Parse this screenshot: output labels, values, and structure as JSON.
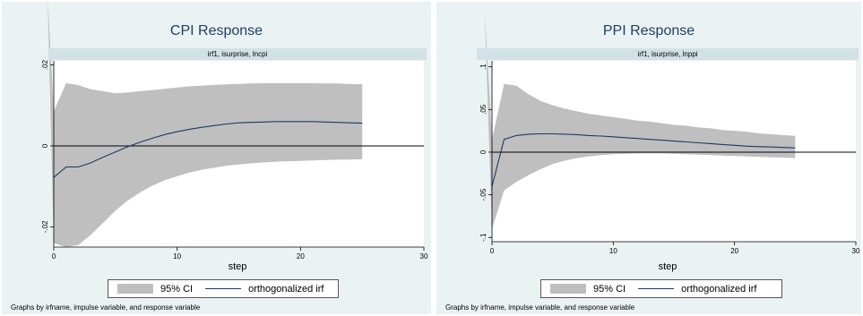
{
  "chart_data": [
    {
      "type": "line",
      "title": "CPI Response",
      "subtitle": "irf1, isurprise, lncpi",
      "xlabel": "step",
      "ylabel": "",
      "xlim": [
        0,
        30
      ],
      "ylim": [
        -0.025,
        0.021
      ],
      "xticks": [
        0,
        10,
        20,
        30
      ],
      "yticks": [
        -0.02,
        0,
        0.02
      ],
      "ytick_labels": [
        "-.02",
        "0",
        ".02"
      ],
      "x": [
        0,
        1,
        2,
        3,
        4,
        5,
        6,
        7,
        8,
        9,
        10,
        11,
        12,
        13,
        14,
        15,
        16,
        17,
        18,
        19,
        20,
        21,
        22,
        23,
        24,
        25
      ],
      "series": [
        {
          "name": "orthogonalized irf",
          "values": [
            -0.0078,
            -0.0052,
            -0.0052,
            -0.0042,
            -0.0028,
            -0.0015,
            -0.0002,
            0.0009,
            0.0019,
            0.0028,
            0.0035,
            0.0041,
            0.0046,
            0.005,
            0.0054,
            0.0057,
            0.0058,
            0.0059,
            0.006,
            0.006,
            0.006,
            0.006,
            0.0059,
            0.0058,
            0.0057,
            0.0056
          ]
        },
        {
          "name": "95% CI",
          "lower": [
            -0.024,
            -0.025,
            -0.0245,
            -0.022,
            -0.019,
            -0.016,
            -0.0135,
            -0.0115,
            -0.0098,
            -0.0085,
            -0.0075,
            -0.0066,
            -0.0059,
            -0.0054,
            -0.0049,
            -0.0046,
            -0.0043,
            -0.0041,
            -0.0039,
            -0.0038,
            -0.0037,
            -0.0036,
            -0.0035,
            -0.0034,
            -0.0034,
            -0.0033
          ],
          "upper": [
            0.0085,
            0.0155,
            0.015,
            0.014,
            0.0135,
            0.013,
            0.0132,
            0.0135,
            0.0138,
            0.0141,
            0.0144,
            0.0147,
            0.0149,
            0.0151,
            0.0152,
            0.0153,
            0.0154,
            0.0155,
            0.0155,
            0.0155,
            0.0155,
            0.0155,
            0.0154,
            0.0154,
            0.0153,
            0.0152
          ]
        }
      ],
      "band_start": {
        "x": -0.5,
        "y": 0.037
      },
      "legend": [
        "95% CI",
        "orthogonalized irf"
      ],
      "legend_position": "bottom",
      "note": "Graphs by irfname, impulse variable, and response variable",
      "grid": false
    },
    {
      "type": "line",
      "title": "PPI Response",
      "subtitle": "irf1, isurprise, lnppi",
      "xlabel": "step",
      "ylabel": "",
      "xlim": [
        0,
        30
      ],
      "ylim": [
        -0.105,
        0.107
      ],
      "xticks": [
        0,
        10,
        20,
        30
      ],
      "yticks": [
        -0.1,
        -0.05,
        0,
        0.05,
        0.1
      ],
      "ytick_labels": [
        "-.1",
        "-.05",
        "0",
        ".05",
        ".1"
      ],
      "x": [
        0,
        1,
        2,
        3,
        4,
        5,
        6,
        7,
        8,
        9,
        10,
        11,
        12,
        13,
        14,
        15,
        16,
        17,
        18,
        19,
        20,
        21,
        22,
        23,
        24,
        25
      ],
      "series": [
        {
          "name": "orthogonalized irf",
          "values": [
            -0.04,
            0.015,
            0.0195,
            0.021,
            0.0215,
            0.0215,
            0.021,
            0.0205,
            0.0195,
            0.0188,
            0.018,
            0.017,
            0.016,
            0.015,
            0.014,
            0.013,
            0.012,
            0.011,
            0.01,
            0.009,
            0.008,
            0.007,
            0.0065,
            0.006,
            0.0055,
            0.005
          ]
        },
        {
          "name": "95% CI",
          "lower": [
            -0.09,
            -0.045,
            -0.035,
            -0.027,
            -0.02,
            -0.014,
            -0.01,
            -0.007,
            -0.005,
            -0.0035,
            -0.0025,
            -0.002,
            -0.0015,
            -0.0015,
            -0.0015,
            -0.002,
            -0.0025,
            -0.003,
            -0.0035,
            -0.004,
            -0.0045,
            -0.005,
            -0.0055,
            -0.006,
            -0.0065,
            -0.007
          ],
          "upper": [
            0.015,
            0.08,
            0.078,
            0.068,
            0.06,
            0.055,
            0.051,
            0.048,
            0.045,
            0.043,
            0.041,
            0.039,
            0.037,
            0.036,
            0.034,
            0.032,
            0.031,
            0.029,
            0.028,
            0.026,
            0.025,
            0.024,
            0.022,
            0.021,
            0.02,
            0.019
          ]
        }
      ],
      "band_start": {
        "x": -0.6,
        "y": 0.165
      },
      "legend": [
        "95% CI",
        "orthogonalized irf"
      ],
      "legend_position": "bottom",
      "note": "Graphs by irfname, impulse variable, and response variable",
      "grid": false
    }
  ]
}
